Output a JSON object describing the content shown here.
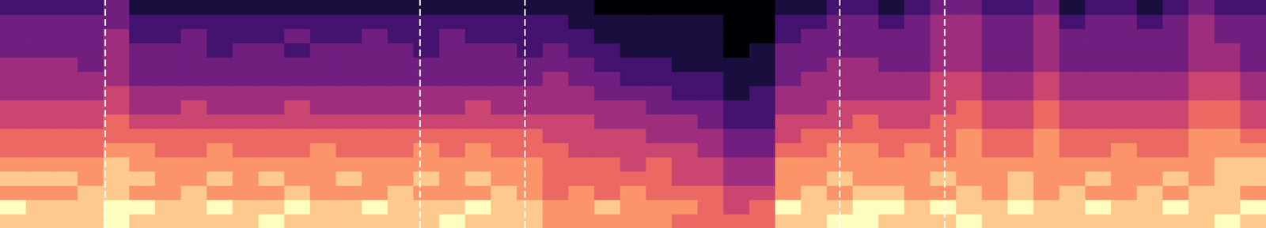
{
  "chart_data": {
    "type": "heatmap",
    "tick_labels": false,
    "line_style": "dashed",
    "xlim": [
      0,
      49
    ],
    "ylim": [
      0,
      16
    ],
    "zlim": [
      0,
      9
    ],
    "vlines": [
      4.06,
      16.25,
      20.31,
      32.5,
      36.56
    ],
    "cells": [
      [
        8,
        8,
        8,
        8,
        9,
        8,
        8,
        8,
        8,
        8,
        9,
        8,
        8,
        8,
        8,
        8,
        8,
        9,
        8,
        8,
        8,
        7,
        7,
        7,
        7,
        7,
        6,
        6,
        6,
        6,
        8,
        8,
        9,
        9,
        8,
        8,
        8,
        9,
        8,
        8,
        8,
        8,
        8,
        8,
        8,
        8,
        8,
        9,
        8
      ],
      [
        9,
        8,
        8,
        8,
        9,
        9,
        8,
        8,
        9,
        8,
        8,
        9,
        8,
        8,
        9,
        8,
        8,
        8,
        9,
        8,
        8,
        7,
        7,
        8,
        7,
        7,
        7,
        6,
        5,
        6,
        9,
        8,
        8,
        9,
        9,
        8,
        9,
        8,
        8,
        9,
        8,
        8,
        9,
        8,
        8,
        9,
        8,
        8,
        9
      ],
      [
        7,
        7,
        7,
        8,
        8,
        7,
        7,
        8,
        7,
        7,
        7,
        8,
        7,
        7,
        7,
        8,
        7,
        7,
        7,
        8,
        7,
        6,
        7,
        6,
        7,
        6,
        6,
        6,
        5,
        5,
        7,
        8,
        7,
        8,
        8,
        7,
        7,
        8,
        7,
        8,
        7,
        8,
        7,
        7,
        8,
        7,
        8,
        8,
        7
      ],
      [
        8,
        8,
        8,
        7,
        8,
        8,
        7,
        7,
        8,
        7,
        8,
        7,
        7,
        8,
        7,
        7,
        8,
        7,
        8,
        7,
        7,
        6,
        6,
        6,
        6,
        6,
        5,
        5,
        4,
        4,
        7,
        7,
        8,
        7,
        7,
        7,
        8,
        7,
        7,
        8,
        7,
        7,
        8,
        7,
        7,
        8,
        7,
        8,
        8
      ],
      [
        7,
        7,
        7,
        7,
        8,
        7,
        7,
        7,
        7,
        7,
        7,
        7,
        7,
        7,
        7,
        7,
        7,
        7,
        7,
        7,
        7,
        6,
        6,
        6,
        5,
        6,
        5,
        5,
        4,
        4,
        7,
        7,
        7,
        7,
        7,
        7,
        7,
        7,
        7,
        7,
        7,
        7,
        7,
        7,
        7,
        7,
        7,
        8,
        8
      ],
      [
        6,
        6,
        6,
        6,
        7,
        7,
        6,
        6,
        7,
        6,
        6,
        6,
        7,
        6,
        6,
        6,
        7,
        6,
        7,
        6,
        6,
        6,
        5,
        5,
        5,
        5,
        5,
        4,
        3,
        3,
        6,
        6,
        7,
        7,
        6,
        7,
        6,
        7,
        6,
        6,
        7,
        6,
        6,
        7,
        6,
        6,
        7,
        7,
        7
      ],
      [
        6,
        6,
        6,
        6,
        6,
        6,
        6,
        6,
        6,
        6,
        6,
        6,
        6,
        6,
        6,
        6,
        6,
        6,
        6,
        6,
        6,
        5,
        5,
        5,
        5,
        4,
        4,
        4,
        3,
        3,
        5,
        6,
        6,
        6,
        6,
        6,
        6,
        7,
        6,
        6,
        7,
        6,
        6,
        6,
        6,
        6,
        7,
        7,
        6
      ],
      [
        5,
        5,
        5,
        5,
        6,
        5,
        5,
        5,
        5,
        5,
        5,
        5,
        5,
        5,
        5,
        5,
        5,
        5,
        5,
        5,
        5,
        5,
        5,
        4,
        4,
        4,
        4,
        3,
        2,
        2,
        5,
        5,
        5,
        6,
        5,
        5,
        6,
        6,
        5,
        5,
        6,
        5,
        5,
        5,
        5,
        5,
        6,
        6,
        5
      ],
      [
        5,
        5,
        5,
        5,
        5,
        4,
        4,
        5,
        4,
        4,
        4,
        5,
        4,
        4,
        4,
        4,
        4,
        4,
        5,
        4,
        4,
        4,
        4,
        4,
        4,
        3,
        3,
        3,
        2,
        2,
        4,
        4,
        5,
        5,
        5,
        5,
        5,
        6,
        5,
        5,
        6,
        5,
        5,
        5,
        5,
        5,
        6,
        6,
        5
      ],
      [
        4,
        4,
        4,
        4,
        5,
        4,
        4,
        4,
        4,
        4,
        4,
        4,
        4,
        4,
        4,
        4,
        4,
        4,
        4,
        4,
        4,
        4,
        4,
        3,
        3,
        3,
        2,
        2,
        1,
        2,
        4,
        4,
        4,
        4,
        4,
        4,
        5,
        5,
        4,
        4,
        5,
        4,
        4,
        4,
        4,
        4,
        5,
        5,
        4
      ],
      [
        4,
        4,
        4,
        4,
        4,
        3,
        3,
        3,
        3,
        3,
        3,
        3,
        3,
        3,
        3,
        3,
        3,
        3,
        3,
        3,
        3,
        4,
        3,
        3,
        2,
        2,
        2,
        2,
        1,
        1,
        3,
        4,
        4,
        4,
        4,
        4,
        5,
        5,
        4,
        4,
        5,
        4,
        4,
        4,
        4,
        4,
        5,
        5,
        4
      ],
      [
        4,
        4,
        4,
        3,
        4,
        3,
        3,
        3,
        3,
        3,
        3,
        3,
        3,
        3,
        3,
        3,
        3,
        3,
        3,
        3,
        3,
        3,
        3,
        2,
        2,
        2,
        1,
        1,
        1,
        1,
        3,
        3,
        4,
        4,
        3,
        3,
        4,
        4,
        3,
        3,
        4,
        3,
        3,
        3,
        3,
        3,
        4,
        4,
        3
      ],
      [
        3,
        3,
        3,
        3,
        4,
        3,
        3,
        3,
        2,
        3,
        3,
        2,
        3,
        3,
        3,
        3,
        2,
        3,
        3,
        3,
        2,
        3,
        2,
        2,
        1,
        1,
        1,
        1,
        0,
        1,
        3,
        3,
        3,
        3,
        3,
        3,
        4,
        4,
        3,
        3,
        4,
        3,
        3,
        3,
        3,
        3,
        4,
        4,
        3
      ],
      [
        3,
        3,
        3,
        3,
        4,
        2,
        2,
        3,
        2,
        2,
        2,
        3,
        2,
        2,
        3,
        2,
        2,
        3,
        2,
        2,
        2,
        2,
        2,
        1,
        1,
        1,
        1,
        1,
        0,
        0,
        2,
        3,
        3,
        3,
        3,
        3,
        4,
        4,
        3,
        3,
        4,
        3,
        3,
        3,
        3,
        3,
        4,
        3,
        3
      ],
      [
        3,
        3,
        3,
        3,
        3,
        2,
        2,
        2,
        2,
        2,
        2,
        2,
        2,
        2,
        2,
        2,
        2,
        2,
        2,
        2,
        2,
        2,
        1,
        1,
        1,
        1,
        1,
        1,
        0,
        0,
        2,
        2,
        3,
        3,
        2,
        3,
        4,
        4,
        3,
        3,
        4,
        2,
        3,
        3,
        2,
        3,
        4,
        3,
        3
      ],
      [
        2,
        2,
        2,
        2,
        3,
        1,
        1,
        1,
        1,
        1,
        1,
        1,
        1,
        1,
        1,
        1,
        1,
        1,
        1,
        1,
        1,
        1,
        1,
        0,
        0,
        0,
        0,
        0,
        0,
        0,
        1,
        1,
        2,
        2,
        1,
        2,
        3,
        3,
        2,
        2,
        3,
        1,
        2,
        2,
        1,
        2,
        3,
        2,
        2
      ]
    ]
  }
}
